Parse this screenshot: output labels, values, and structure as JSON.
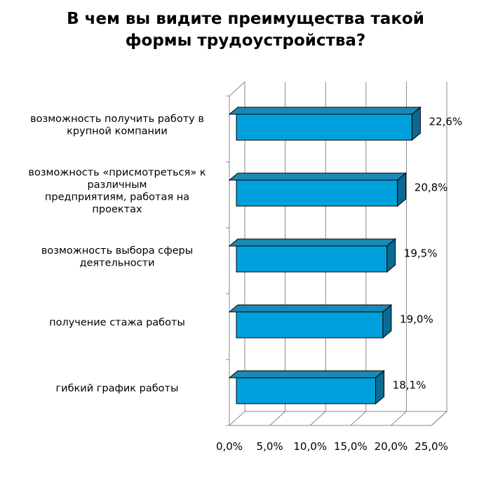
{
  "chart_data": {
    "type": "bar",
    "orientation": "horizontal",
    "title_lines": [
      "В чем вы видите преимущества такой",
      "формы трудоустройства?"
    ],
    "categories": [
      [
        "возможность получить работу в",
        "крупной компании"
      ],
      [
        "возможность «присмотреться» к",
        "различным",
        "предприятиям, работая на",
        "проектах"
      ],
      [
        "возможность выбора сферы",
        "деятельности"
      ],
      [
        "получение стажа работы"
      ],
      [
        "гибкий график работы"
      ]
    ],
    "values": [
      22.6,
      20.8,
      19.5,
      19.0,
      18.1
    ],
    "value_labels": [
      "22,6%",
      "20,8%",
      "19,5%",
      "19,0%",
      "18,1%"
    ],
    "x_ticks": [
      "0,0%",
      "5,0%",
      "10,0%",
      "15,0%",
      "20,0%",
      "25,0%"
    ],
    "xlim": [
      0,
      25
    ],
    "grid": true,
    "legend": "none",
    "bar_color": "#00A0DC",
    "bar_top_color": "#1B89B6",
    "bar_side_color": "#0B6A92"
  }
}
